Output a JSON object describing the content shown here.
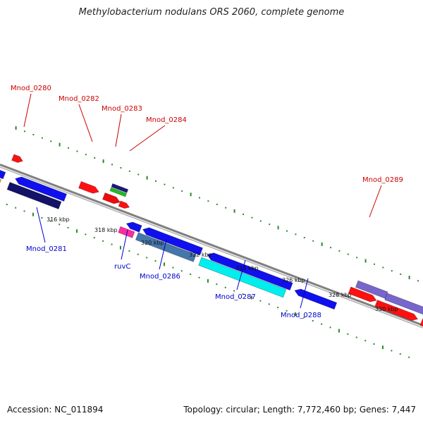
{
  "title": "Methylobacterium nodulans ORS 2060, complete genome",
  "accession": "Accession: NC_011894",
  "summary": "Topology: circular; Length: 7,772,460 bp; Genes: 7,447",
  "colors": {
    "backbone": "#808080",
    "tick": "#2a8a2a",
    "top_label": "#cc0000",
    "bottom_label": "#0000cc"
  },
  "top_labels": [
    {
      "text": "Mnod_0280"
    },
    {
      "text": "Mnod_0282"
    },
    {
      "text": "Mnod_0283"
    },
    {
      "text": "Mnod_0284"
    },
    {
      "text": "Mnod_0289"
    }
  ],
  "bottom_labels": [
    {
      "text": "Mnod_0281"
    },
    {
      "text": "ruvC"
    },
    {
      "text": "Mnod_0286"
    },
    {
      "text": "Mnod_0287"
    },
    {
      "text": "Mnod_0288"
    }
  ],
  "kbp_labels": [
    "316 kbp",
    "318 kbp",
    "320 kbp",
    "322 kbp",
    "324 kbp",
    "326 kbp",
    "328 kbp",
    "330 kbp"
  ]
}
